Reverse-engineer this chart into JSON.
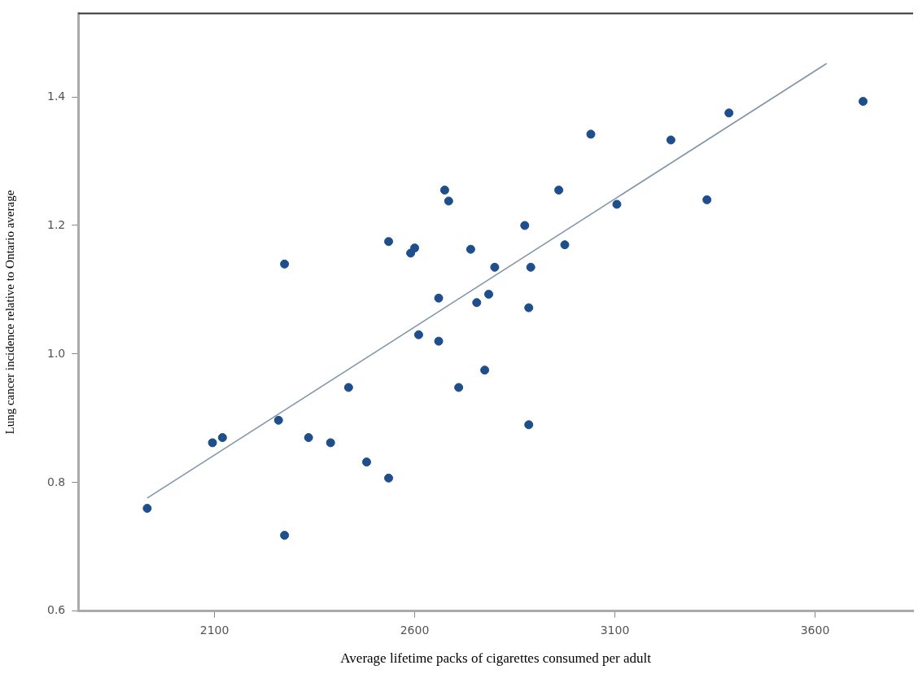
{
  "chart_data": {
    "type": "scatter",
    "xlabel": "Average lifetime packs of cigarettes consumed per adult",
    "ylabel": "Lung cancer incidence relative to Ontario average",
    "xlim": [
      1760,
      3845
    ],
    "ylim": [
      0.6,
      1.53
    ],
    "xticks": [
      2100,
      2600,
      3100,
      3600
    ],
    "yticks": [
      {
        "value": 0.6,
        "label": "0.6"
      },
      {
        "value": 0.8,
        "label": "0.8"
      },
      {
        "value": 1.0,
        "label": "1.0"
      },
      {
        "value": 1.2,
        "label": "1.2"
      },
      {
        "value": 1.4,
        "label": "1.4"
      }
    ],
    "grid": false,
    "legend": false,
    "series": [
      {
        "marker": "circle",
        "color": "#1f4e8c",
        "x": [
          1932,
          2095,
          2120,
          2260,
          2275,
          2275,
          2335,
          2390,
          2435,
          2480,
          2535,
          2535,
          2590,
          2600,
          2610,
          2660,
          2660,
          2675,
          2685,
          2710,
          2740,
          2755,
          2775,
          2785,
          2800,
          2875,
          2885,
          2885,
          2890,
          2960,
          2975,
          3040,
          3105,
          3240,
          3330,
          3385,
          3720
        ],
        "values": [
          0.76,
          0.862,
          0.87,
          0.897,
          1.14,
          0.718,
          0.87,
          0.862,
          0.948,
          0.832,
          0.807,
          1.175,
          1.157,
          1.165,
          1.03,
          1.087,
          1.02,
          1.255,
          1.238,
          0.948,
          1.163,
          1.08,
          0.975,
          1.093,
          1.135,
          1.2,
          1.072,
          0.89,
          1.135,
          1.255,
          1.17,
          1.342,
          1.233,
          1.333,
          1.24,
          1.375,
          1.393
        ]
      },
      {
        "type": "line",
        "marker": "none",
        "color": "#7f93a8",
        "x": [
          1932,
          3629
        ],
        "values": [
          0.776,
          1.452
        ]
      }
    ]
  }
}
